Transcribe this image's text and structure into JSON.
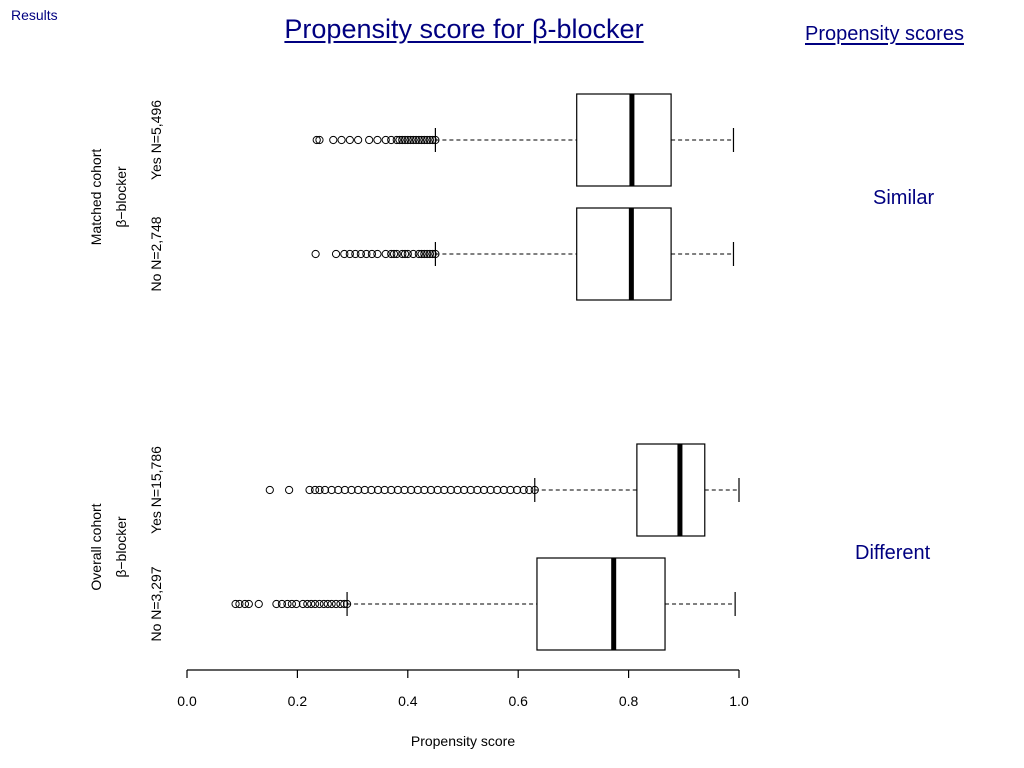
{
  "page": {
    "corner_label": "Results",
    "title": "Propensity score for β-blocker",
    "section_link": "Propensity scores",
    "notes": {
      "similar": "Similar",
      "different": "Different"
    }
  },
  "chart_data": {
    "type": "boxplot",
    "orientation": "horizontal",
    "xlabel": "Propensity score",
    "xlim": [
      0.0,
      1.0
    ],
    "xticks": [
      "0.0",
      "0.2",
      "0.4",
      "0.6",
      "0.8",
      "1.0"
    ],
    "groups": [
      {
        "label_lines": [
          "Matched cohort",
          "β−blocker"
        ],
        "series": [
          {
            "label": "Yes N=5,496",
            "whisker_low": 0.45,
            "q1": 0.706,
            "median": 0.806,
            "q3": 0.877,
            "whisker_high": 0.99,
            "outliers": [
              0.235,
              0.24,
              0.265,
              0.28,
              0.295,
              0.31,
              0.33,
              0.345,
              0.36,
              0.37,
              0.38,
              0.385,
              0.39,
              0.395,
              0.4,
              0.405,
              0.41,
              0.415,
              0.42,
              0.425,
              0.43,
              0.435,
              0.44,
              0.445,
              0.45
            ]
          },
          {
            "label": "No N=2,748",
            "whisker_low": 0.45,
            "q1": 0.706,
            "median": 0.805,
            "q3": 0.877,
            "whisker_high": 0.99,
            "outliers": [
              0.233,
              0.27,
              0.285,
              0.295,
              0.305,
              0.315,
              0.325,
              0.335,
              0.345,
              0.36,
              0.37,
              0.375,
              0.38,
              0.39,
              0.395,
              0.4,
              0.41,
              0.42,
              0.425,
              0.43,
              0.435,
              0.44,
              0.445,
              0.45
            ]
          }
        ]
      },
      {
        "label_lines": [
          "Overall cohort",
          "β−blocker"
        ],
        "series": [
          {
            "label": "Yes N=15,786",
            "whisker_low": 0.63,
            "q1": 0.815,
            "median": 0.893,
            "q3": 0.938,
            "whisker_high": 1.0,
            "outliers": [
              0.15,
              0.185,
              0.222,
              0.232,
              0.24,
              0.25,
              0.262,
              0.274,
              0.286,
              0.298,
              0.31,
              0.322,
              0.334,
              0.346,
              0.358,
              0.37,
              0.382,
              0.394,
              0.406,
              0.418,
              0.43,
              0.442,
              0.454,
              0.466,
              0.478,
              0.49,
              0.502,
              0.514,
              0.526,
              0.538,
              0.55,
              0.562,
              0.574,
              0.586,
              0.598,
              0.61,
              0.62,
              0.63
            ]
          },
          {
            "label": "No N=3,297",
            "whisker_low": 0.29,
            "q1": 0.634,
            "median": 0.773,
            "q3": 0.866,
            "whisker_high": 0.993,
            "outliers": [
              0.088,
              0.095,
              0.105,
              0.112,
              0.13,
              0.162,
              0.172,
              0.182,
              0.19,
              0.198,
              0.21,
              0.218,
              0.225,
              0.232,
              0.24,
              0.248,
              0.255,
              0.262,
              0.27,
              0.278,
              0.285,
              0.29
            ]
          }
        ]
      }
    ]
  }
}
